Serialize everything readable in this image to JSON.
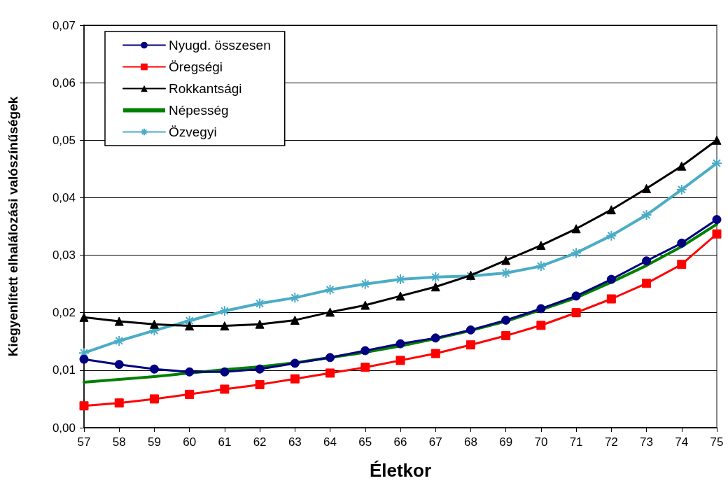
{
  "chart_data": {
    "type": "line",
    "xlabel": "Életkor",
    "ylabel": "Kiegyenlített elhalálozási valószínűségek",
    "categories": [
      "57",
      "58",
      "59",
      "60",
      "61",
      "62",
      "63",
      "64",
      "65",
      "66",
      "67",
      "68",
      "69",
      "70",
      "71",
      "72",
      "73",
      "74",
      "75"
    ],
    "series": [
      {
        "name": "Nyugd. összesen",
        "color": "#000080",
        "marker": "circle",
        "values": [
          0.0119,
          0.011,
          0.0102,
          0.0097,
          0.0097,
          0.0102,
          0.0112,
          0.0122,
          0.0134,
          0.0146,
          0.0156,
          0.017,
          0.0187,
          0.0207,
          0.0229,
          0.0258,
          0.029,
          0.0321,
          0.0362
        ]
      },
      {
        "name": "Öregségi",
        "color": "#ff0000",
        "marker": "square",
        "values": [
          0.0038,
          0.0043,
          0.005,
          0.0058,
          0.0067,
          0.0075,
          0.0085,
          0.0095,
          0.0105,
          0.0117,
          0.0129,
          0.0144,
          0.016,
          0.0178,
          0.02,
          0.0224,
          0.0251,
          0.0284,
          0.0337
        ]
      },
      {
        "name": "Rokkantsági",
        "color": "#000000",
        "marker": "triangle",
        "values": [
          0.0192,
          0.0185,
          0.018,
          0.0177,
          0.0177,
          0.018,
          0.0187,
          0.0201,
          0.0213,
          0.0229,
          0.0245,
          0.0265,
          0.0291,
          0.0317,
          0.0346,
          0.0379,
          0.0416,
          0.0455,
          0.05
        ]
      },
      {
        "name": "Népesség",
        "color": "#008000",
        "marker": "none",
        "values": [
          0.0079,
          0.0084,
          0.0089,
          0.0095,
          0.0101,
          0.0106,
          0.0113,
          0.0122,
          0.0131,
          0.0142,
          0.0155,
          0.0169,
          0.0185,
          0.0205,
          0.0226,
          0.0253,
          0.0282,
          0.0315,
          0.0354
        ]
      },
      {
        "name": "Özvegyi",
        "color": "#4bacc6",
        "marker": "cross",
        "values": [
          0.013,
          0.0151,
          0.0169,
          0.0186,
          0.0203,
          0.0216,
          0.0226,
          0.024,
          0.025,
          0.0258,
          0.0262,
          0.0264,
          0.0269,
          0.0281,
          0.0304,
          0.0334,
          0.037,
          0.0414,
          0.046
        ]
      }
    ],
    "ylim": [
      0,
      0.07
    ],
    "yticks": [
      {
        "value": 0,
        "label": "0,00"
      },
      {
        "value": 0.01,
        "label": "0,01"
      },
      {
        "value": 0.02,
        "label": "0,02"
      },
      {
        "value": 0.03,
        "label": "0,03"
      },
      {
        "value": 0.04,
        "label": "0,04"
      },
      {
        "value": 0.05,
        "label": "0,05"
      },
      {
        "value": 0.06,
        "label": "0,06"
      },
      {
        "value": 0.07,
        "label": "0,07"
      }
    ],
    "grid": "y",
    "legend": "top left",
    "line_style": "solid"
  }
}
